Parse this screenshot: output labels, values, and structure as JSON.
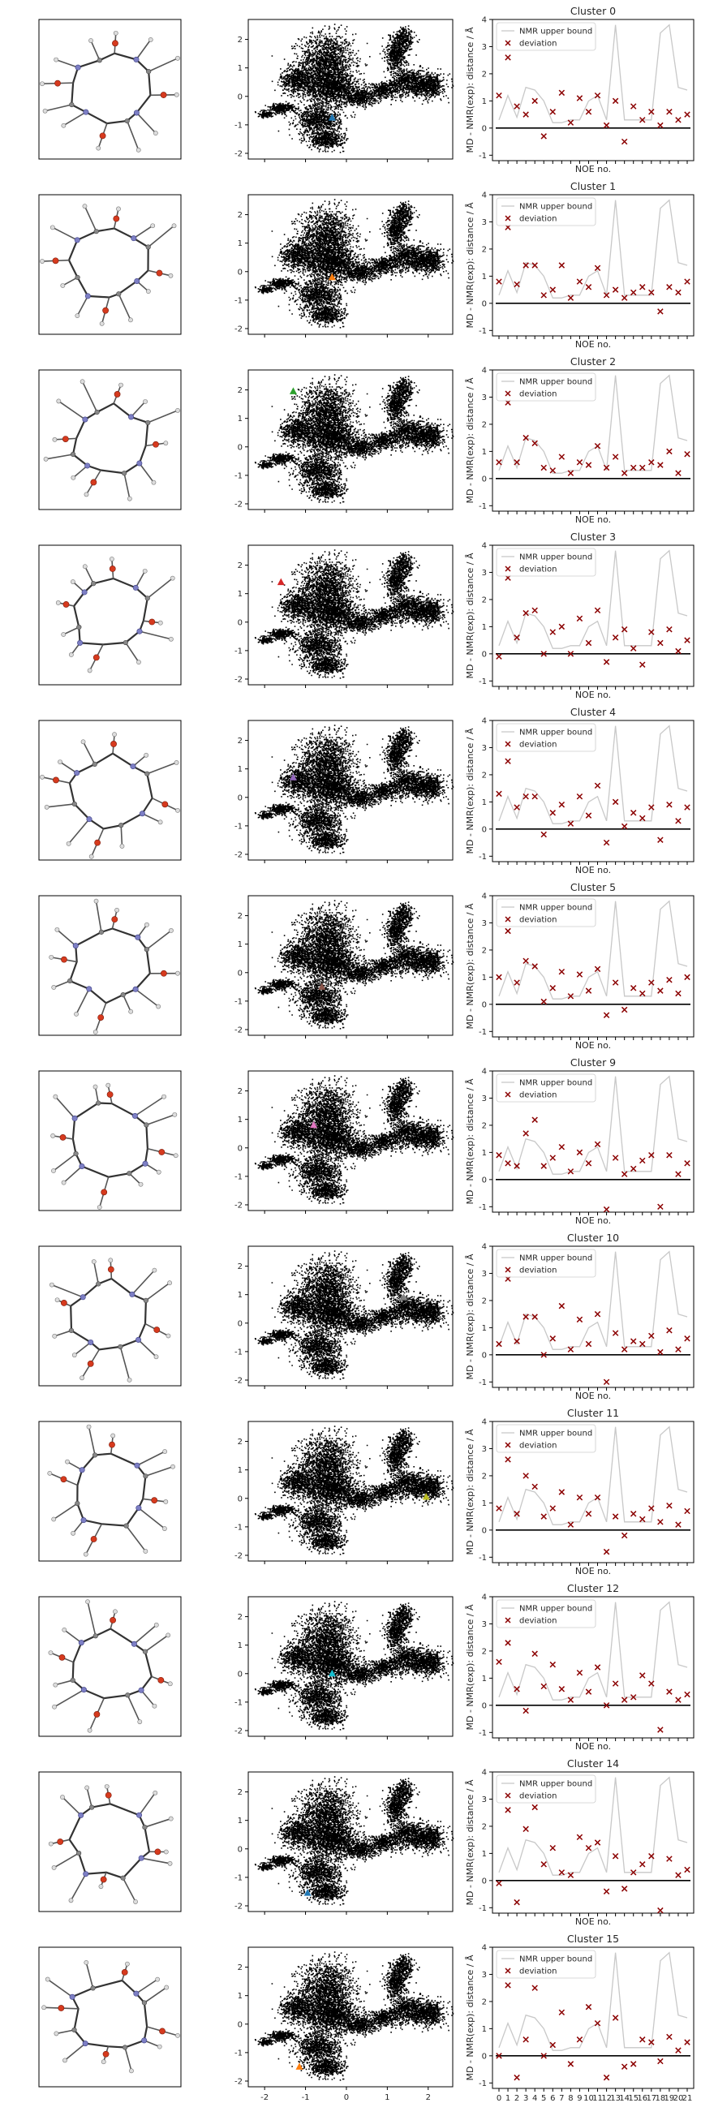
{
  "figure": {
    "panels": [
      "molecular-structure",
      "landscape-scatter",
      "noe-deviation"
    ]
  },
  "chart_data": {
    "type": "multi-panel",
    "landscape": {
      "type": "scatter",
      "xlim": [
        -2.4,
        2.6
      ],
      "ylim": [
        -2.2,
        2.7
      ],
      "xticks": [
        -2,
        -1,
        0,
        1,
        2
      ],
      "yticks": [
        -2,
        -1,
        0,
        1,
        2
      ],
      "cloud_color": "#000000",
      "marker": "triangle",
      "xtick_labels_shown_on_last_row_only": true
    },
    "noe": {
      "type": "line+scatter",
      "xlabel": "NOE no.",
      "ylabel": "MD - NMR(exp): distance / Å",
      "ylim": [
        -1.2,
        4.0
      ],
      "yticks": [
        -1,
        0,
        1,
        2,
        3,
        4
      ],
      "x": [
        0,
        1,
        2,
        3,
        4,
        5,
        6,
        7,
        8,
        9,
        10,
        11,
        12,
        13,
        14,
        15,
        16,
        17,
        18,
        19,
        20,
        21
      ],
      "xtick_labels": [
        "0",
        "1",
        "2",
        "3",
        "4",
        "5",
        "6",
        "7",
        "8",
        "9",
        "10",
        "11",
        "12",
        "13",
        "14",
        "15",
        "16",
        "17",
        "18",
        "19",
        "20",
        "21"
      ],
      "upper_bound_label": "NMR upper bound",
      "deviation_label": "deviation",
      "upper_bound_color": "#c8c8c8",
      "deviation_color": "#8b0000",
      "zero_line_color": "#000000",
      "upper_bound": [
        0.3,
        1.2,
        0.4,
        1.5,
        1.4,
        1.0,
        0.2,
        0.2,
        0.3,
        0.3,
        1.0,
        1.2,
        0.3,
        3.8,
        0.3,
        0.3,
        0.3,
        0.3,
        3.5,
        3.8,
        1.5,
        1.4
      ]
    },
    "clusters": [
      {
        "title": "Cluster 0",
        "marker": [
          -0.35,
          -0.75
        ],
        "marker_color": "#1f77b4",
        "deviation": [
          1.2,
          2.6,
          0.8,
          0.5,
          1.0,
          -0.3,
          0.6,
          1.3,
          0.2,
          1.1,
          0.6,
          1.2,
          0.1,
          1.0,
          -0.5,
          0.8,
          0.3,
          0.6,
          0.1,
          0.6,
          0.3,
          0.5
        ]
      },
      {
        "title": "Cluster 1",
        "marker": [
          -0.35,
          -0.2
        ],
        "marker_color": "#ff7f0e",
        "deviation": [
          0.8,
          2.8,
          0.7,
          1.4,
          1.4,
          0.3,
          0.5,
          1.4,
          0.2,
          0.8,
          0.6,
          1.3,
          0.3,
          0.5,
          0.2,
          0.4,
          0.6,
          0.4,
          -0.3,
          0.6,
          0.4,
          0.8
        ]
      },
      {
        "title": "Cluster 2",
        "marker": [
          -1.3,
          1.95
        ],
        "marker_color": "#2ca02c",
        "deviation": [
          0.6,
          2.8,
          0.6,
          1.5,
          1.3,
          0.4,
          0.3,
          0.8,
          0.2,
          0.6,
          0.5,
          1.2,
          0.4,
          0.8,
          0.2,
          0.4,
          0.4,
          0.6,
          0.5,
          1.0,
          0.2,
          0.9
        ]
      },
      {
        "title": "Cluster 3",
        "marker": [
          -1.6,
          1.4
        ],
        "marker_color": "#d62728",
        "deviation": [
          -0.1,
          2.8,
          0.6,
          1.5,
          1.6,
          0.0,
          0.8,
          1.0,
          0.0,
          1.3,
          0.4,
          1.6,
          -0.3,
          0.6,
          0.9,
          0.2,
          -0.4,
          0.8,
          0.4,
          0.9,
          0.1,
          0.5
        ]
      },
      {
        "title": "Cluster 4",
        "marker": [
          -1.3,
          0.7
        ],
        "marker_color": "#9467bd",
        "deviation": [
          1.3,
          2.5,
          0.8,
          1.2,
          1.2,
          -0.2,
          0.6,
          0.9,
          0.2,
          1.2,
          0.5,
          1.6,
          -0.5,
          1.0,
          0.1,
          0.6,
          0.4,
          0.8,
          -0.4,
          0.9,
          0.3,
          0.8
        ]
      },
      {
        "title": "Cluster 5",
        "marker": [
          -0.6,
          -0.5
        ],
        "marker_color": "#8c564b",
        "deviation": [
          1.0,
          2.7,
          0.8,
          1.6,
          1.4,
          0.1,
          0.6,
          1.2,
          0.3,
          1.1,
          0.5,
          1.3,
          -0.4,
          0.8,
          -0.2,
          0.6,
          0.4,
          0.8,
          0.5,
          0.9,
          0.4,
          1.0
        ]
      },
      {
        "title": "Cluster 9",
        "marker": [
          -0.8,
          0.8
        ],
        "marker_color": "#e377c2",
        "deviation": [
          0.9,
          0.6,
          0.5,
          1.7,
          2.2,
          0.5,
          0.8,
          1.2,
          0.3,
          1.0,
          0.6,
          1.3,
          -1.1,
          0.8,
          0.2,
          0.4,
          0.7,
          0.9,
          -1.0,
          0.9,
          0.2,
          0.6
        ]
      },
      {
        "title": "Cluster 10",
        "marker": [
          1.4,
          0.9
        ],
        "marker_color": "#7f7f7f",
        "deviation": [
          0.4,
          2.8,
          0.5,
          1.4,
          1.4,
          0.0,
          0.6,
          1.8,
          0.2,
          1.3,
          0.4,
          1.5,
          -1.0,
          0.8,
          0.2,
          0.5,
          0.4,
          0.7,
          0.1,
          0.9,
          0.2,
          0.6
        ]
      },
      {
        "title": "Cluster 11",
        "marker": [
          1.95,
          0.05
        ],
        "marker_color": "#bcbd22",
        "deviation": [
          0.8,
          2.6,
          0.6,
          2.0,
          1.6,
          0.5,
          0.8,
          1.4,
          0.2,
          1.2,
          0.6,
          1.2,
          -0.8,
          0.5,
          -0.2,
          0.6,
          0.4,
          0.8,
          0.3,
          0.9,
          0.2,
          0.7
        ]
      },
      {
        "title": "Cluster 12",
        "marker": [
          -0.35,
          0.0
        ],
        "marker_color": "#17becf",
        "deviation": [
          1.6,
          2.3,
          0.6,
          -0.2,
          1.9,
          0.7,
          1.5,
          0.6,
          0.2,
          1.2,
          0.5,
          1.4,
          0.0,
          0.8,
          0.2,
          0.3,
          1.1,
          0.8,
          -0.9,
          0.5,
          0.2,
          0.4
        ]
      },
      {
        "title": "Cluster 14",
        "marker": [
          -0.95,
          -1.55
        ],
        "marker_color": "#1f77b4",
        "deviation": [
          -0.1,
          2.6,
          -0.8,
          1.9,
          2.7,
          0.6,
          1.2,
          0.3,
          0.2,
          1.6,
          1.2,
          1.4,
          -0.4,
          0.9,
          -0.3,
          0.3,
          0.6,
          0.9,
          -1.1,
          0.8,
          0.2,
          0.4
        ]
      },
      {
        "title": "Cluster 15",
        "marker": [
          -1.15,
          -1.5
        ],
        "marker_color": "#ff7f0e",
        "deviation": [
          0.0,
          2.6,
          -0.8,
          0.6,
          2.5,
          0.0,
          0.4,
          1.6,
          -0.3,
          0.6,
          1.8,
          1.2,
          -0.8,
          1.4,
          -0.4,
          -0.3,
          0.6,
          0.5,
          -0.2,
          0.7,
          0.2,
          0.5
        ]
      }
    ]
  }
}
